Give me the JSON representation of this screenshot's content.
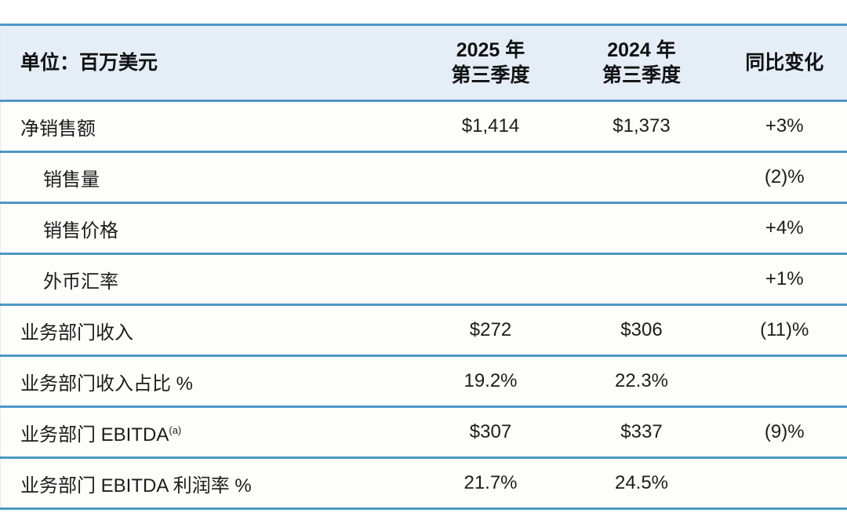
{
  "table": {
    "unit_header": "单位：百万美元",
    "col_2025": {
      "line1": "2025 年",
      "line2": "第三季度"
    },
    "col_2024": {
      "line1": "2024 年",
      "line2": "第三季度"
    },
    "col_yoy": "同比变化",
    "rows": [
      {
        "label": "净销售额",
        "v2025": "$1,414",
        "v2024": "$1,373",
        "yoy": "+3%"
      },
      {
        "label": "销售量",
        "yoy": "(2)%"
      },
      {
        "label": "销售价格",
        "yoy": "+4%"
      },
      {
        "label": "外币汇率",
        "yoy": "+1%"
      },
      {
        "label": "业务部门收入",
        "v2025": "$272",
        "v2024": "$306",
        "yoy": "(11)%"
      },
      {
        "label": "业务部门收入占比 %",
        "v2025": "19.2%",
        "v2024": "22.3%"
      },
      {
        "label": "业务部门 EBITDA",
        "label_sup": "(a)",
        "v2025": "$307",
        "v2024": "$337",
        "yoy": "(9)%"
      },
      {
        "label": "业务部门 EBITDA 利润率 %",
        "v2025": "21.7%",
        "v2024": "24.5%"
      }
    ]
  },
  "colors": {
    "separator_blue": "#4d97c4",
    "header_bg": "#e5edf7",
    "row_bg": "#fdfdfc",
    "text": "#1c1c1c"
  },
  "chart_data": {
    "type": "table",
    "title": "单位：百万美元",
    "columns": [
      "单位：百万美元",
      "2025 年 第三季度",
      "2024 年 第三季度",
      "同比变化"
    ],
    "rows": [
      [
        "净销售额",
        "$1,414",
        "$1,373",
        "+3%"
      ],
      [
        "销售量",
        "",
        "",
        "(2)%"
      ],
      [
        "销售价格",
        "",
        "",
        "+4%"
      ],
      [
        "外币汇率",
        "",
        "",
        "+1%"
      ],
      [
        "业务部门收入",
        "$272",
        "$306",
        "(11)%"
      ],
      [
        "业务部门收入占比 %",
        "19.2%",
        "22.3%",
        ""
      ],
      [
        "业务部门 EBITDA(a)",
        "$307",
        "$337",
        "(9)%"
      ],
      [
        "业务部门 EBITDA 利润率 %",
        "21.7%",
        "24.5%",
        ""
      ]
    ],
    "indented_rows": [
      "销售量",
      "销售价格",
      "外币汇率"
    ],
    "footnote_marker": "(a)"
  }
}
